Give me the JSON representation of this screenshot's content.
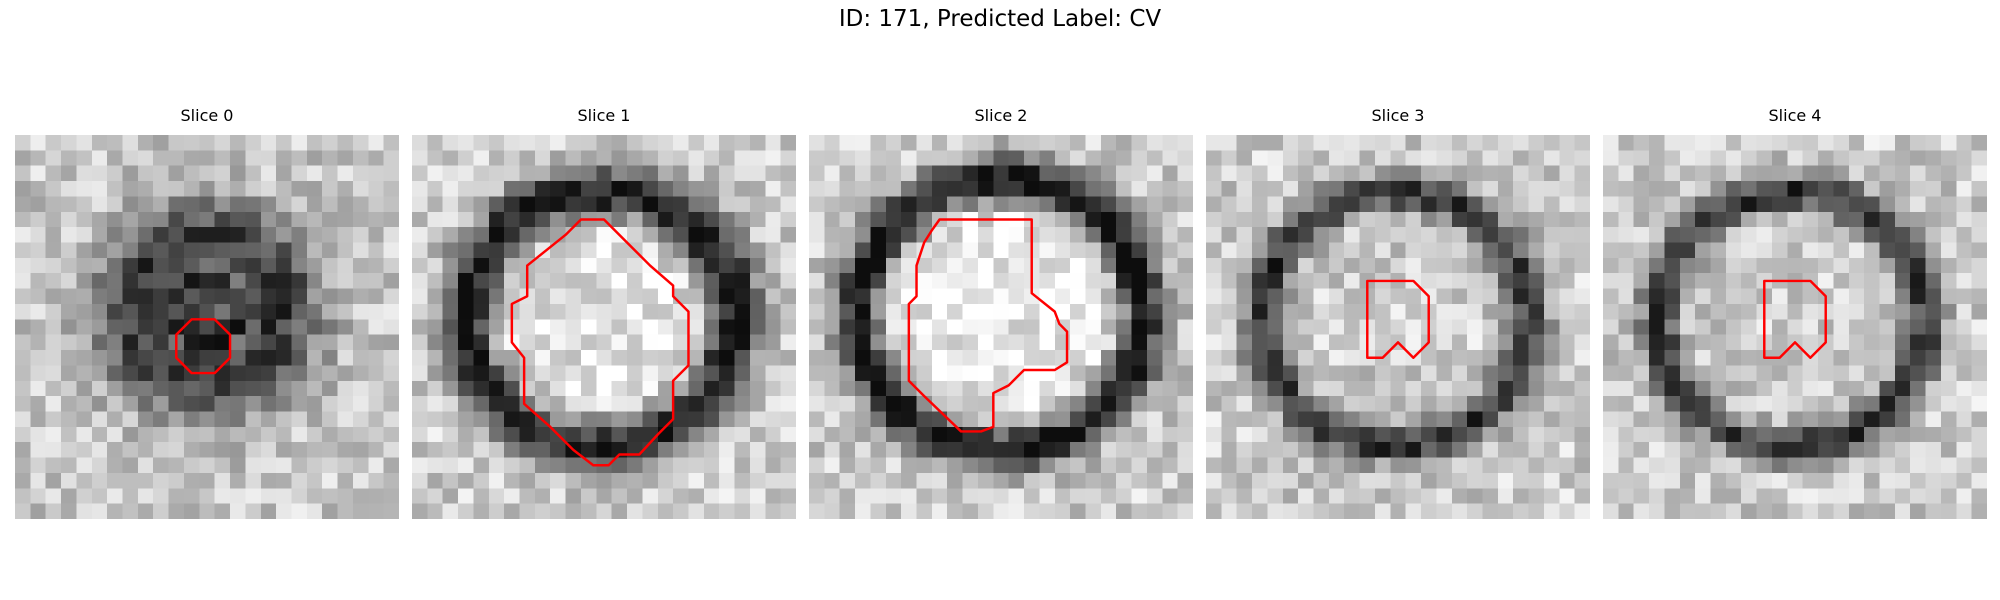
{
  "figure": {
    "title": "ID: 171, Predicted Label: CV"
  },
  "panels": [
    {
      "title": "Slice 0"
    },
    {
      "title": "Slice 1"
    },
    {
      "title": "Slice 2"
    },
    {
      "title": "Slice 3"
    },
    {
      "title": "Slice 4"
    }
  ],
  "colors": {
    "contour": "#ff0000"
  }
}
